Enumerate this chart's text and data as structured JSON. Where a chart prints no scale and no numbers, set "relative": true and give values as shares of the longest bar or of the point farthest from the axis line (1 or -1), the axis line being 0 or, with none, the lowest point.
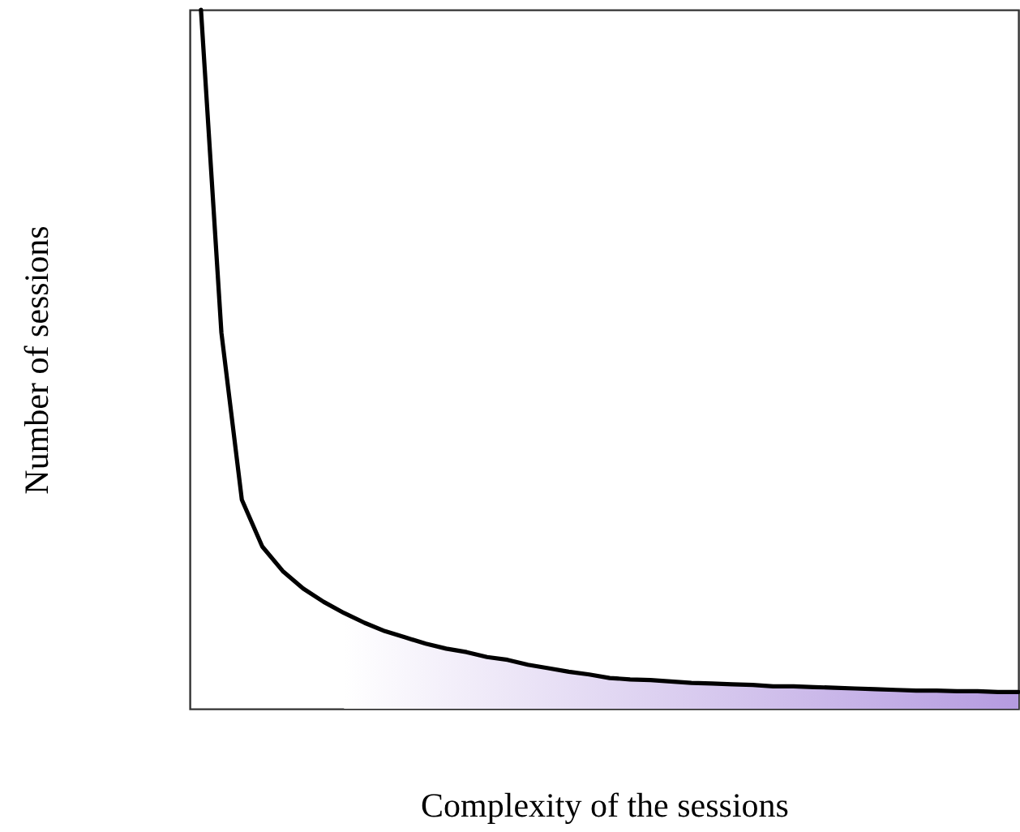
{
  "chart_data": {
    "type": "line",
    "relative": true,
    "xlabel": "Complexity of the sessions",
    "ylabel": "Number of sessions",
    "grid": false,
    "categories": [
      null,
      null,
      null,
      null,
      null,
      null,
      null,
      null,
      null,
      null,
      null,
      null,
      null,
      null,
      null,
      null,
      null,
      null,
      null,
      null,
      null,
      null,
      null,
      null,
      null,
      null,
      null,
      null,
      null,
      null,
      null,
      null,
      null,
      null,
      null,
      null,
      null,
      null,
      null,
      null,
      null
    ],
    "series": [
      {
        "type": "area",
        "color": "#b59be0",
        "values": [
          null,
          null,
          null,
          null,
          null,
          null,
          null,
          0.137,
          0.123,
          0.111,
          0.102,
          0.093,
          0.086,
          0.081,
          0.074,
          0.07,
          0.063,
          0.058,
          0.053,
          0.049,
          0.044,
          0.042,
          0.041,
          0.039,
          0.037,
          0.036,
          0.035,
          0.034,
          0.032,
          0.032,
          0.031,
          0.03,
          0.029,
          0.028,
          0.027,
          0.026,
          0.026,
          0.025,
          0.025,
          0.024,
          0.024
        ]
      },
      {
        "color": "#000000",
        "values": [
          1.0,
          0.538,
          0.299,
          0.232,
          0.197,
          0.172,
          0.153,
          0.137,
          0.123,
          0.111,
          0.102,
          0.093,
          0.086,
          0.081,
          0.074,
          0.07,
          0.063,
          0.058,
          0.053,
          0.049,
          0.044,
          0.042,
          0.041,
          0.039,
          0.037,
          0.036,
          0.035,
          0.034,
          0.032,
          0.032,
          0.031,
          0.03,
          0.029,
          0.028,
          0.027,
          0.026,
          0.026,
          0.025,
          0.025,
          0.024,
          0.024
        ]
      }
    ]
  }
}
